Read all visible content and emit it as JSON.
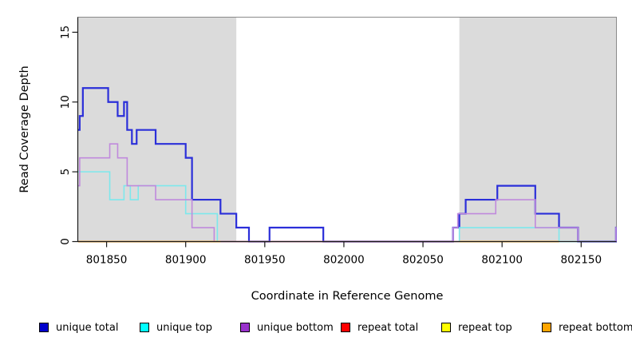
{
  "chart_data": {
    "type": "line",
    "subtype": "step-coverage",
    "title": "",
    "xlabel": "Coordinate in Reference Genome",
    "ylabel": "Read Coverage Depth",
    "xlim": [
      801831.8,
      802172.3
    ],
    "ylim": [
      0,
      16.08
    ],
    "xticks": [
      801850,
      801900,
      801950,
      802000,
      802050,
      802100,
      802150
    ],
    "yticks": [
      0,
      5,
      10,
      15
    ],
    "grid": false,
    "highlight_regions": [
      {
        "name": "left-repeat-region",
        "x0": 801831.8,
        "x1": 801932,
        "color": "#DBDBDB"
      },
      {
        "name": "right-repeat-region",
        "x0": 802073,
        "x1": 802172.3,
        "color": "#DBDBDB"
      }
    ],
    "series": [
      {
        "name": "unique total",
        "color": "#2B2FD9",
        "width": 2.2,
        "segments": [
          {
            "end": 802172.3,
            "points": [
              [
                801832,
                8
              ],
              [
                801833,
                9
              ],
              [
                801835,
                11
              ],
              [
                801851,
                10
              ],
              [
                801857,
                9
              ],
              [
                801861,
                10
              ],
              [
                801863,
                8
              ],
              [
                801866,
                7
              ],
              [
                801869,
                8
              ],
              [
                801881,
                7
              ],
              [
                801900,
                6
              ],
              [
                801904,
                3
              ],
              [
                801922,
                2
              ],
              [
                801932,
                1
              ],
              [
                801940,
                0
              ],
              [
                801953,
                1
              ],
              [
                801987,
                0
              ],
              [
                802069,
                1
              ],
              [
                802073,
                2
              ],
              [
                802077,
                3
              ],
              [
                802097,
                4
              ],
              [
                802121,
                2
              ],
              [
                802136,
                1
              ],
              [
                802148,
                0
              ],
              [
                802172,
                1
              ]
            ]
          }
        ]
      },
      {
        "name": "unique top",
        "color": "#7DE8EC",
        "width": 1.6,
        "segments": [
          {
            "end": 802172.3,
            "points": [
              [
                801832,
                5
              ],
              [
                801852,
                3
              ],
              [
                801861,
                4
              ],
              [
                801865,
                3
              ],
              [
                801870,
                4
              ],
              [
                801900,
                2
              ],
              [
                801920,
                0
              ],
              [
                802073,
                1
              ],
              [
                802136,
                0
              ]
            ]
          }
        ]
      },
      {
        "name": "unique bottom",
        "color": "#C08ADC",
        "width": 1.6,
        "segments": [
          {
            "end": 802172.3,
            "points": [
              [
                801832,
                4
              ],
              [
                801833,
                6
              ],
              [
                801852,
                7
              ],
              [
                801857,
                6
              ],
              [
                801863,
                4
              ],
              [
                801881,
                3
              ],
              [
                801904,
                1
              ],
              [
                801918,
                0
              ],
              [
                802069,
                1
              ],
              [
                802072,
                2
              ],
              [
                802096,
                3
              ],
              [
                802121,
                1
              ],
              [
                802148,
                0
              ],
              [
                802172,
                1
              ]
            ]
          }
        ]
      },
      {
        "name": "repeat total",
        "color": "#E2596C",
        "width": 1.6,
        "segments": [
          {
            "end": 802073,
            "points": [
              [
                801832,
                0
              ]
            ]
          }
        ]
      },
      {
        "name": "repeat top",
        "color": "#F2E635",
        "width": 1.6,
        "segments": [
          {
            "end": 801922,
            "points": [
              [
                801832,
                0
              ]
            ]
          },
          {
            "end": 802136,
            "points": [
              [
                802073,
                0
              ]
            ]
          }
        ]
      },
      {
        "name": "repeat bottom",
        "color": "#FFA428",
        "width": 1.8,
        "segments": [
          {
            "end": 801922,
            "points": [
              [
                801832,
                0
              ]
            ]
          },
          {
            "end": 802136,
            "points": [
              [
                802073,
                0
              ]
            ]
          }
        ]
      }
    ],
    "legend": {
      "position": "bottom",
      "items": [
        {
          "label": "unique total",
          "color": "#0000CC"
        },
        {
          "label": "unique top",
          "color": "#00FFFF"
        },
        {
          "label": "unique bottom",
          "color": "#9932CC"
        },
        {
          "label": "repeat total",
          "color": "#FF0000"
        },
        {
          "label": "repeat top",
          "color": "#FFFF00"
        },
        {
          "label": "repeat bottom",
          "color": "#FFA500"
        }
      ]
    },
    "axis_colors": {
      "axis": "#1a1a1a",
      "box": "#8a8a8a",
      "tick_label": "#000000"
    }
  }
}
